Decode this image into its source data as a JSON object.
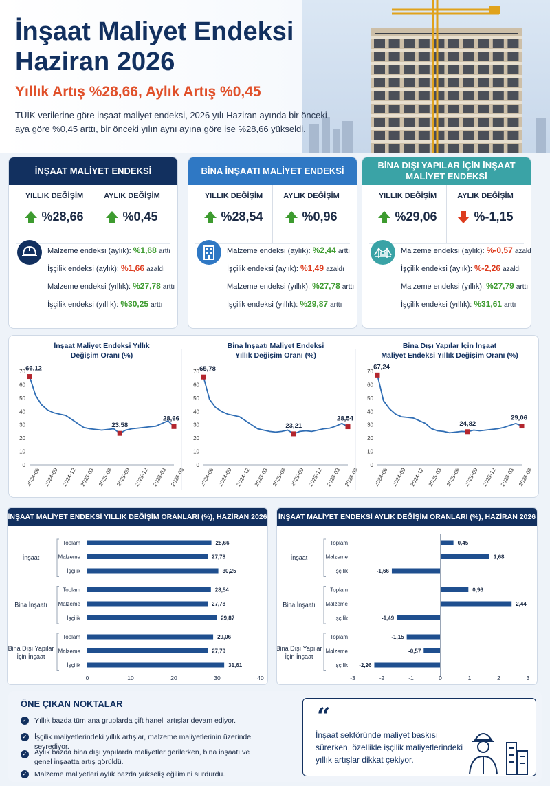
{
  "header": {
    "title_line1": "İnşaat Maliyet Endeksi",
    "title_line2": "Haziran 2026",
    "subtitle": "Yıllık Artış %28,66, Aylık Artış %0,45",
    "intro": "TÜİK verilerine göre inşaat maliyet endeksi, 2026 yılı Haziran ayında bir önceki aya göre %0,45 arttı, bir önceki yılın aynı ayına göre ise %28,66 yükseldi."
  },
  "colors": {
    "navy": "#12305f",
    "blue": "#2f78c4",
    "teal": "#3aa3a6",
    "green": "#3d9b2f",
    "red": "#dd3c1f",
    "orange": "#e0502a"
  },
  "cards": [
    {
      "title": "İNŞAAT MALİYET ENDEKSİ",
      "color": "#12305f",
      "icon": "helmet-icon",
      "yillik_label": "YILLIK DEĞİŞİM",
      "yillik_value": "%28,66",
      "yillik_dir": "up",
      "aylik_label": "AYLIK DEĞİŞİM",
      "aylik_value": "%0,45",
      "aylik_dir": "up",
      "details": [
        {
          "label": "Malzeme endeksi (aylık):",
          "value": "%1,68",
          "suffix": "arttı",
          "dir": "up"
        },
        {
          "label": "İşçilik endeksi (aylık):",
          "value": "%1,66",
          "suffix": "azaldı",
          "dir": "down"
        },
        {
          "label": "Malzeme endeksi (yıllık):",
          "value": "%27,78",
          "suffix": "arttı",
          "dir": "up"
        },
        {
          "label": "İşçilik endeksi (yıllık):",
          "value": "%30,25",
          "suffix": "arttı",
          "dir": "up"
        }
      ]
    },
    {
      "title": "BİNA İNŞAATI MALİYET ENDEKSİ",
      "color": "#2f78c4",
      "icon": "building-icon",
      "yillik_label": "YILLIK DEĞİŞİM",
      "yillik_value": "%28,54",
      "yillik_dir": "up",
      "aylik_label": "AYLIK DEĞİŞİM",
      "aylik_value": "%0,96",
      "aylik_dir": "up",
      "details": [
        {
          "label": "Malzeme endeksi (aylık):",
          "value": "%2,44",
          "suffix": "arttı",
          "dir": "up"
        },
        {
          "label": "İşçilik endeksi (aylık):",
          "value": "%1,49",
          "suffix": "azaldı",
          "dir": "down"
        },
        {
          "label": "Malzeme endeksi (yıllık):",
          "value": "%27,78",
          "suffix": "arttı",
          "dir": "up"
        },
        {
          "label": "İşçilik endeksi (yıllık):",
          "value": "%29,87",
          "suffix": "arttı",
          "dir": "up"
        }
      ]
    },
    {
      "title": "BİNA DIŞI YAPILAR İÇİN İNŞAAT MALİYET ENDEKSİ",
      "color": "#3aa3a6",
      "icon": "bridge-icon",
      "yillik_label": "YILLIK DEĞİŞİM",
      "yillik_value": "%29,06",
      "yillik_dir": "up",
      "aylik_label": "AYLIK DEĞİŞİM",
      "aylik_value": "%-1,15",
      "aylik_dir": "down",
      "details": [
        {
          "label": "Malzeme endeksi (aylık):",
          "value": "%-0,57",
          "suffix": "azaldı",
          "dir": "down"
        },
        {
          "label": "İşçilik endeksi (aylık):",
          "value": "%-2,26",
          "suffix": "azaldı",
          "dir": "down"
        },
        {
          "label": "Malzeme endeksi (yıllık):",
          "value": "%27,79",
          "suffix": "arttı",
          "dir": "up"
        },
        {
          "label": "İşçilik endeksi (yıllık):",
          "value": "%31,61",
          "suffix": "arttı",
          "dir": "up"
        }
      ]
    }
  ],
  "chart_data": [
    {
      "type": "line",
      "title": "İnşaat Maliyet Endeksi Yıllık Değişim Oranı (%)",
      "x": [
        "2024-06",
        "2024-07",
        "2024-08",
        "2024-09",
        "2024-10",
        "2024-11",
        "2024-12",
        "2025-01",
        "2025-02",
        "2025-03",
        "2025-04",
        "2025-05",
        "2025-06",
        "2025-07",
        "2025-08",
        "2025-09",
        "2025-10",
        "2025-11",
        "2025-12",
        "2026-01",
        "2026-02",
        "2026-03",
        "2026-04",
        "2026-05",
        "2026-06"
      ],
      "x_ticks": [
        "2024-06",
        "2024-09",
        "2024-12",
        "2025-03",
        "2025-06",
        "2025-09",
        "2025-12",
        "2026-03",
        "2026-06"
      ],
      "values": [
        66.12,
        52,
        45,
        41,
        39,
        38,
        37,
        34,
        31,
        28,
        27,
        26.5,
        26,
        26.5,
        27,
        23.58,
        26,
        27,
        27.5,
        28,
        28.5,
        29,
        31,
        33,
        28.66
      ],
      "labels": [
        {
          "index": 0,
          "text": "66,12"
        },
        {
          "index": 15,
          "text": "23,58"
        },
        {
          "index": 24,
          "text": "28,66"
        }
      ],
      "ylim": [
        0,
        70
      ],
      "y_ticks": [
        0,
        10,
        20,
        30,
        40,
        50,
        60,
        70
      ]
    },
    {
      "type": "line",
      "title": "Bina İnşaatı Maliyet Endeksi Yıllık Değişim Oranı (%)",
      "x": [
        "2024-06",
        "2024-07",
        "2024-08",
        "2024-09",
        "2024-10",
        "2024-11",
        "2024-12",
        "2025-01",
        "2025-02",
        "2025-03",
        "2025-04",
        "2025-05",
        "2025-06",
        "2025-07",
        "2025-08",
        "2025-09",
        "2025-10",
        "2025-11",
        "2025-12",
        "2026-01",
        "2026-02",
        "2026-03",
        "2026-04",
        "2026-05",
        "2026-06"
      ],
      "x_ticks": [
        "2024-06",
        "2024-09",
        "2024-12",
        "2025-03",
        "2025-06",
        "2025-09",
        "2025-12",
        "2026-03",
        "2026-06"
      ],
      "values": [
        65.78,
        49,
        43,
        40,
        38,
        37,
        36,
        33,
        30,
        27,
        26,
        25,
        24.5,
        25,
        26,
        23.21,
        25,
        25.5,
        25,
        26,
        27,
        27.5,
        29,
        31,
        28.54
      ],
      "labels": [
        {
          "index": 0,
          "text": "65,78"
        },
        {
          "index": 15,
          "text": "23,21"
        },
        {
          "index": 24,
          "text": "28,54"
        }
      ],
      "ylim": [
        0,
        70
      ],
      "y_ticks": [
        0,
        10,
        20,
        30,
        40,
        50,
        60,
        70
      ]
    },
    {
      "type": "line",
      "title": "Bina Dışı Yapılar İçin İnşaat Maliyet Endeksi Yıllık Değişim Oranı (%)",
      "x": [
        "2024-06",
        "2024-07",
        "2024-08",
        "2024-09",
        "2024-10",
        "2024-11",
        "2024-12",
        "2025-01",
        "2025-02",
        "2025-03",
        "2025-04",
        "2025-05",
        "2025-06",
        "2025-07",
        "2025-08",
        "2025-09",
        "2025-10",
        "2025-11",
        "2025-12",
        "2026-01",
        "2026-02",
        "2026-03",
        "2026-04",
        "2026-05",
        "2026-06"
      ],
      "x_ticks": [
        "2024-06",
        "2024-09",
        "2024-12",
        "2025-03",
        "2025-06",
        "2025-09",
        "2025-12",
        "2026-03",
        "2026-06"
      ],
      "values": [
        67.24,
        48,
        42,
        38,
        36,
        35.5,
        35,
        33,
        31,
        27,
        25.5,
        25,
        24,
        24.5,
        25,
        24.82,
        26,
        25.5,
        26,
        26.5,
        27,
        28,
        29.5,
        31,
        29.06
      ],
      "labels": [
        {
          "index": 0,
          "text": "67,24"
        },
        {
          "index": 15,
          "text": "24,82"
        },
        {
          "index": 24,
          "text": "29,06"
        }
      ],
      "ylim": [
        0,
        70
      ],
      "y_ticks": [
        0,
        10,
        20,
        30,
        40,
        50,
        60,
        70
      ]
    },
    {
      "type": "bar",
      "orientation": "horizontal",
      "title": "İNŞAAT MALİYET ENDEKSİ YILLIK DEĞİŞİM ORANLARI (%), HAZİRAN 2026",
      "groups": [
        {
          "name": "İnşaat",
          "items": [
            {
              "label": "Toplam",
              "value": 28.66,
              "text": "28,66"
            },
            {
              "label": "Malzeme",
              "value": 27.78,
              "text": "27,78"
            },
            {
              "label": "İşçilik",
              "value": 30.25,
              "text": "30,25"
            }
          ]
        },
        {
          "name": "Bina İnşaatı",
          "items": [
            {
              "label": "Toplam",
              "value": 28.54,
              "text": "28,54"
            },
            {
              "label": "Malzeme",
              "value": 27.78,
              "text": "27,78"
            },
            {
              "label": "İşçilik",
              "value": 29.87,
              "text": "29,87"
            }
          ]
        },
        {
          "name": "Bina Dışı Yapılar İçin İnşaat",
          "items": [
            {
              "label": "Toplam",
              "value": 29.06,
              "text": "29,06"
            },
            {
              "label": "Malzeme",
              "value": 27.79,
              "text": "27,79"
            },
            {
              "label": "İşçilik",
              "value": 31.61,
              "text": "31,61"
            }
          ]
        }
      ],
      "xlim": [
        0,
        40
      ],
      "x_ticks": [
        0,
        10,
        20,
        30,
        40
      ]
    },
    {
      "type": "bar",
      "orientation": "horizontal",
      "title": "İNŞAAT MALİYET ENDEKSİ AYLIK DEĞİŞİM ORANLARI (%), HAZİRAN 2026",
      "groups": [
        {
          "name": "İnşaat",
          "items": [
            {
              "label": "Toplam",
              "value": 0.45,
              "text": "0,45"
            },
            {
              "label": "Malzeme",
              "value": 1.68,
              "text": "1,68"
            },
            {
              "label": "İşçilik",
              "value": -1.66,
              "text": "-1,66"
            }
          ]
        },
        {
          "name": "Bina İnşaatı",
          "items": [
            {
              "label": "Toplam",
              "value": 0.96,
              "text": "0,96"
            },
            {
              "label": "Malzeme",
              "value": 2.44,
              "text": "2,44"
            },
            {
              "label": "İşçilik",
              "value": -1.49,
              "text": "-1,49"
            }
          ]
        },
        {
          "name": "Bina Dışı Yapılar İçin İnşaat",
          "items": [
            {
              "label": "Toplam",
              "value": -1.15,
              "text": "-1,15"
            },
            {
              "label": "Malzeme",
              "value": -0.57,
              "text": "-0,57"
            },
            {
              "label": "İşçilik",
              "value": -2.26,
              "text": "-2,26"
            }
          ]
        }
      ],
      "xlim": [
        -3,
        3
      ],
      "x_ticks": [
        -3,
        -2,
        -1,
        0,
        1,
        2,
        3
      ]
    }
  ],
  "notes": {
    "title": "ÖNE ÇIKAN NOKTALAR",
    "items": [
      "Yıllık bazda tüm ana gruplarda çift haneli artışlar devam ediyor.",
      "İşçilik maliyetlerindeki yıllık artışlar, malzeme maliyetlerinin üzerinde seyrediyor.",
      "Aylık bazda bina dışı yapılarda maliyetler gerilerken, bina inşaatı ve genel inşaatta artış görüldü.",
      "Malzeme maliyetleri aylık bazda yükseliş eğilimini sürdürdü."
    ],
    "quote": "İnşaat sektöründe maliyet baskısı sürerken, özellikle işçilik maliyetlerindeki yıllık artışlar dikkat çekiyor."
  }
}
